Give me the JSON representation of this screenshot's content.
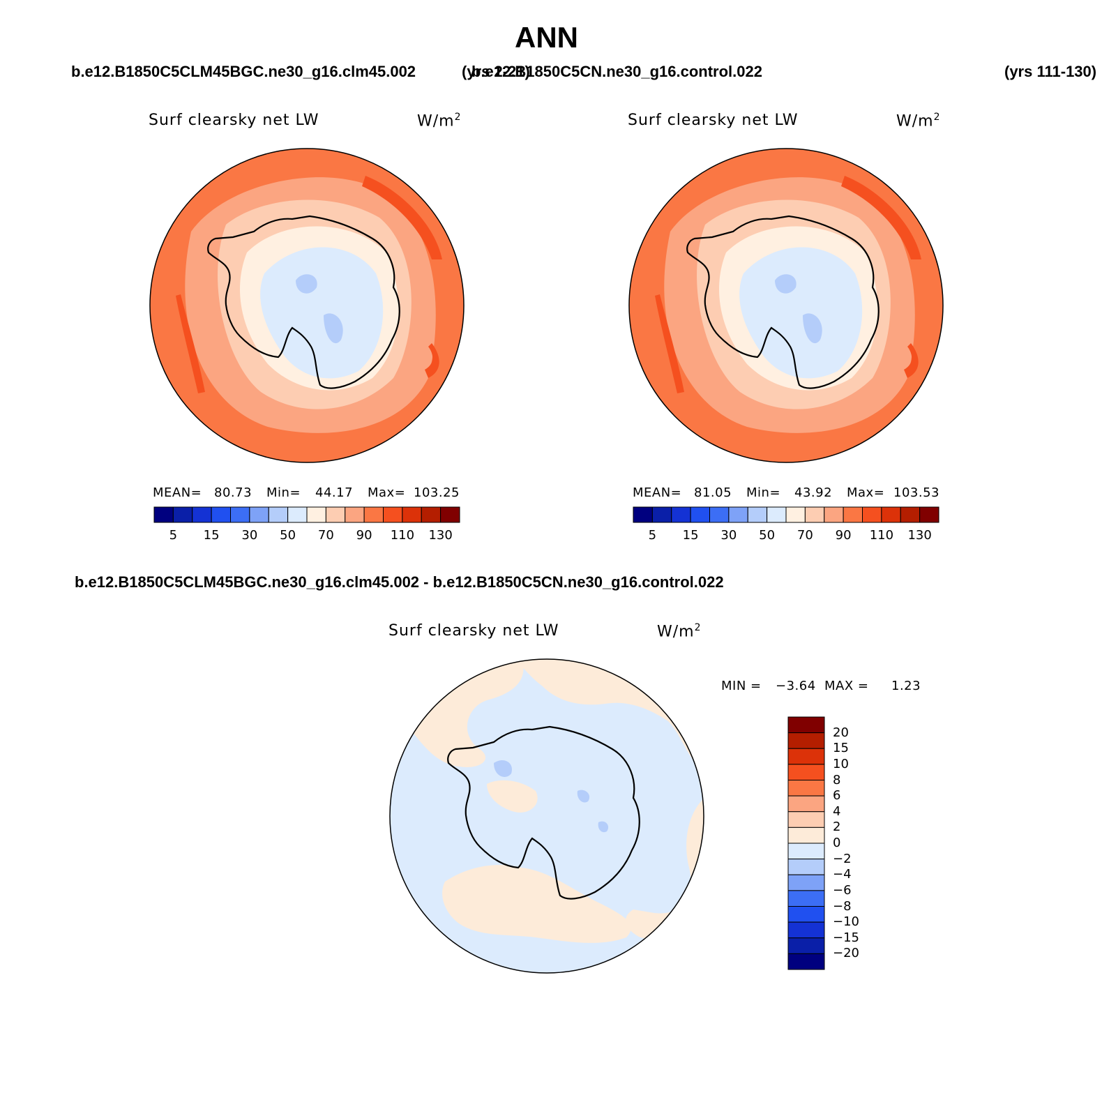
{
  "title": "ANN",
  "header": {
    "case1": "b.e12.B1850C5CLM45BGC.ne30_g16.clm45.002",
    "case1_years": "(yrs 2-21)",
    "case2": "b.e12.B1850C5CN.ne30_g16.control.022",
    "case2_years": "(yrs 111-130)"
  },
  "panels": [
    {
      "variable": "Surf clearsky net LW",
      "units_base": "W/m",
      "units_exp": "2",
      "mean_label": "MEAN=",
      "mean": "80.73",
      "min_label": "Min=",
      "min": "44.17",
      "max_label": "Max=",
      "max": "103.25",
      "colorbar_ticks": [
        "5",
        "15",
        "30",
        "50",
        "70",
        "90",
        "110",
        "130"
      ]
    },
    {
      "variable": "Surf clearsky net LW",
      "units_base": "W/m",
      "units_exp": "2",
      "mean_label": "MEAN=",
      "mean": "81.05",
      "min_label": "Min=",
      "min": "43.92",
      "max_label": "Max=",
      "max": "103.53",
      "colorbar_ticks": [
        "5",
        "15",
        "30",
        "50",
        "70",
        "90",
        "110",
        "130"
      ]
    }
  ],
  "difference": {
    "title": "b.e12.B1850C5CLM45BGC.ne30_g16.clm45.002 - b.e12.B1850C5CN.ne30_g16.control.022",
    "variable": "Surf clearsky net LW",
    "units_base": "W/m",
    "units_exp": "2",
    "min_label": "MIN =",
    "min": "−3.64",
    "max_label": "MAX =",
    "max": "1.23",
    "colorbar_ticks": [
      "20",
      "15",
      "10",
      "8",
      "6",
      "4",
      "2",
      "0",
      "−2",
      "−4",
      "−6",
      "−8",
      "−10",
      "−15",
      "−20"
    ]
  },
  "colors": {
    "levels_abs": [
      "#00007f",
      "#0a1fa8",
      "#1432d4",
      "#2050f0",
      "#3c6ef5",
      "#7ea2f7",
      "#b4cdfa",
      "#dcebfd",
      "#fff0e1",
      "#fdcdb2",
      "#fba581",
      "#fa7744",
      "#f5501f",
      "#dc3209",
      "#b41e00",
      "#800000"
    ],
    "levels_diff": [
      "#800000",
      "#b41e00",
      "#dc3209",
      "#f5501f",
      "#fa7744",
      "#fba581",
      "#fdcdb2",
      "#fdebd9",
      "#dcebfd",
      "#b4cdfa",
      "#7ea2f7",
      "#3c6ef5",
      "#2050f0",
      "#1432d4",
      "#0a1fa8",
      "#00007f"
    ]
  }
}
